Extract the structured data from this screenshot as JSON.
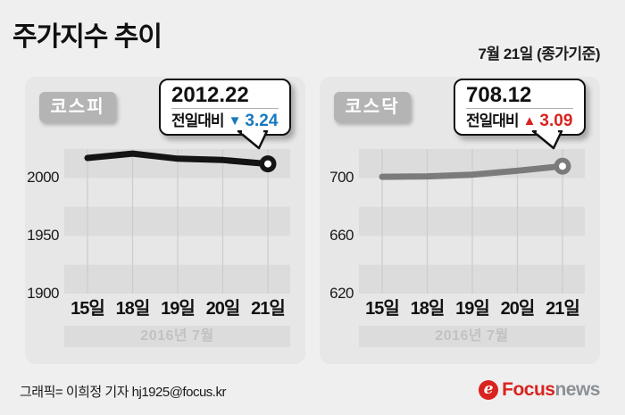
{
  "page": {
    "title": "주가지수 추이",
    "date_note": "7월 21일 (종가기준)",
    "credit": "그래픽= 이희정 기자 hj1925@focus.kr",
    "logo": {
      "icon_glyph": "e",
      "focus": "Focus",
      "news": "news"
    }
  },
  "colors": {
    "page_bg": "#efefef",
    "panel_bg": "#e7e7e7",
    "band": "#dcdcdc",
    "gridline": "#cccccc",
    "month_band_bg": "#dcdcdc",
    "month_band_text": "#c2c2c2",
    "badge_bg": "#b4b4b4",
    "down_blue": "#1878be",
    "up_red": "#d8231f",
    "kospi_line": "#141414",
    "kosdaq_line": "#7b7b7b"
  },
  "chart_data": [
    {
      "type": "line",
      "name": "코스피",
      "categories": [
        "15일",
        "18일",
        "19일",
        "20일",
        "21일"
      ],
      "values": [
        2017.3,
        2021.1,
        2016.7,
        2015.5,
        2012.22
      ],
      "yticks": [
        2000,
        1950,
        1900
      ],
      "ylim": [
        1900,
        2025
      ],
      "band_step": 25,
      "grid": "alternating-horizontal-bands",
      "period_label": "2016년 7월",
      "line_color": "#141414",
      "callout": {
        "value": "2012.22",
        "change_label": "전일대비",
        "direction": "down",
        "arrow": "▼",
        "change": "3.24",
        "color": "#1878be"
      }
    },
    {
      "type": "line",
      "name": "코스닥",
      "categories": [
        "15일",
        "18일",
        "19일",
        "20일",
        "21일"
      ],
      "values": [
        700.8,
        701.1,
        702.3,
        705.0,
        708.12
      ],
      "yticks": [
        700,
        660,
        620
      ],
      "ylim": [
        620,
        720
      ],
      "band_step": 20,
      "grid": "alternating-horizontal-bands",
      "period_label": "2016년 7월",
      "line_color": "#7b7b7b",
      "callout": {
        "value": "708.12",
        "change_label": "전일대비",
        "direction": "up",
        "arrow": "▲",
        "change": "3.09",
        "color": "#d8231f"
      }
    }
  ]
}
